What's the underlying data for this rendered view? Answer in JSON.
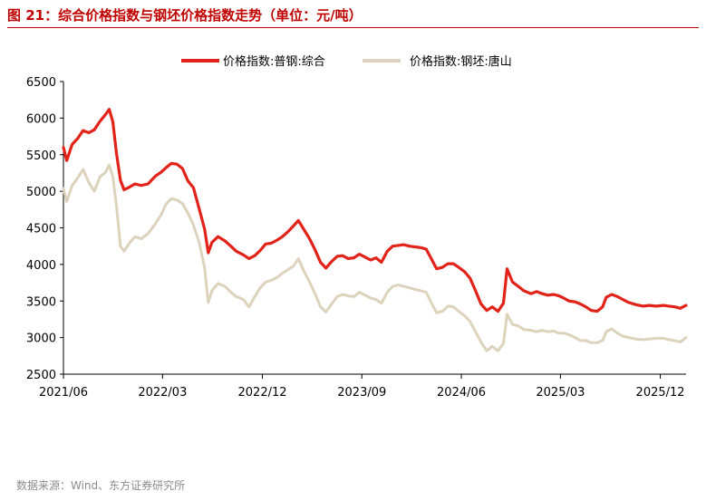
{
  "title": "图 21：综合价格指数与钢坯价格指数走势（单位：元/吨）",
  "source": "数据来源：Wind、东方证券研究所",
  "colors": {
    "accent": "#c00000",
    "series1": "#e2231a",
    "series2": "#ddd3bd"
  },
  "chart_data": {
    "type": "line",
    "title": "图 21：综合价格指数与钢坯价格指数走势（单位：元/吨）",
    "xlabel": "",
    "ylabel": "",
    "ylim": [
      2500,
      6500
    ],
    "yticks": [
      "6500",
      "6000",
      "5500",
      "5000",
      "4500",
      "4000",
      "3500",
      "3000",
      "2500"
    ],
    "xticks": [
      "2021/06",
      "2022/03",
      "2022/12",
      "2023/09",
      "2024/06",
      "2025/03",
      "2025/12"
    ],
    "xrange": [
      "2021-06-01",
      "2026-02-10"
    ],
    "grid": false,
    "legend": "top-center",
    "series": [
      {
        "name": "价格指数:普钢:综合",
        "color": "#e2231a",
        "points": [
          [
            "2021-06-01",
            5600
          ],
          [
            "2021-06-10",
            5420
          ],
          [
            "2021-06-25",
            5640
          ],
          [
            "2021-07-10",
            5720
          ],
          [
            "2021-07-25",
            5830
          ],
          [
            "2021-08-10",
            5800
          ],
          [
            "2021-08-25",
            5840
          ],
          [
            "2021-09-10",
            5960
          ],
          [
            "2021-09-25",
            6050
          ],
          [
            "2021-10-05",
            6120
          ],
          [
            "2021-10-15",
            5950
          ],
          [
            "2021-10-25",
            5520
          ],
          [
            "2021-11-05",
            5150
          ],
          [
            "2021-11-15",
            5020
          ],
          [
            "2021-12-01",
            5060
          ],
          [
            "2021-12-15",
            5100
          ],
          [
            "2022-01-01",
            5080
          ],
          [
            "2022-01-20",
            5100
          ],
          [
            "2022-02-10",
            5210
          ],
          [
            "2022-02-25",
            5260
          ],
          [
            "2022-03-10",
            5320
          ],
          [
            "2022-03-25",
            5380
          ],
          [
            "2022-04-10",
            5370
          ],
          [
            "2022-04-25",
            5310
          ],
          [
            "2022-05-10",
            5140
          ],
          [
            "2022-05-25",
            5050
          ],
          [
            "2022-06-10",
            4760
          ],
          [
            "2022-06-25",
            4480
          ],
          [
            "2022-07-05",
            4160
          ],
          [
            "2022-07-15",
            4300
          ],
          [
            "2022-08-01",
            4380
          ],
          [
            "2022-08-20",
            4320
          ],
          [
            "2022-09-05",
            4250
          ],
          [
            "2022-09-20",
            4180
          ],
          [
            "2022-10-10",
            4130
          ],
          [
            "2022-10-25",
            4080
          ],
          [
            "2022-11-10",
            4120
          ],
          [
            "2022-11-25",
            4190
          ],
          [
            "2022-12-10",
            4280
          ],
          [
            "2022-12-25",
            4290
          ],
          [
            "2023-01-10",
            4330
          ],
          [
            "2023-01-25",
            4380
          ],
          [
            "2023-02-10",
            4450
          ],
          [
            "2023-02-25",
            4530
          ],
          [
            "2023-03-10",
            4600
          ],
          [
            "2023-03-25",
            4480
          ],
          [
            "2023-04-10",
            4350
          ],
          [
            "2023-04-25",
            4200
          ],
          [
            "2023-05-10",
            4030
          ],
          [
            "2023-05-25",
            3950
          ],
          [
            "2023-06-10",
            4040
          ],
          [
            "2023-06-25",
            4110
          ],
          [
            "2023-07-10",
            4120
          ],
          [
            "2023-07-25",
            4080
          ],
          [
            "2023-08-10",
            4090
          ],
          [
            "2023-08-25",
            4140
          ],
          [
            "2023-09-10",
            4100
          ],
          [
            "2023-09-25",
            4060
          ],
          [
            "2023-10-10",
            4090
          ],
          [
            "2023-10-25",
            4030
          ],
          [
            "2023-11-10",
            4180
          ],
          [
            "2023-11-25",
            4250
          ],
          [
            "2023-12-10",
            4260
          ],
          [
            "2023-12-25",
            4270
          ],
          [
            "2024-01-10",
            4250
          ],
          [
            "2024-01-25",
            4240
          ],
          [
            "2024-02-10",
            4230
          ],
          [
            "2024-02-25",
            4210
          ],
          [
            "2024-03-10",
            4080
          ],
          [
            "2024-03-25",
            3940
          ],
          [
            "2024-04-10",
            3960
          ],
          [
            "2024-04-25",
            4010
          ],
          [
            "2024-05-10",
            4010
          ],
          [
            "2024-05-25",
            3960
          ],
          [
            "2024-06-10",
            3900
          ],
          [
            "2024-06-25",
            3810
          ],
          [
            "2024-07-10",
            3640
          ],
          [
            "2024-07-25",
            3460
          ],
          [
            "2024-08-10",
            3370
          ],
          [
            "2024-08-25",
            3420
          ],
          [
            "2024-09-10",
            3360
          ],
          [
            "2024-09-25",
            3470
          ],
          [
            "2024-10-05",
            3940
          ],
          [
            "2024-10-20",
            3760
          ],
          [
            "2024-11-05",
            3700
          ],
          [
            "2024-11-20",
            3640
          ],
          [
            "2024-12-10",
            3600
          ],
          [
            "2024-12-25",
            3630
          ],
          [
            "2025-01-10",
            3600
          ],
          [
            "2025-01-25",
            3580
          ],
          [
            "2025-02-10",
            3590
          ],
          [
            "2025-02-25",
            3570
          ],
          [
            "2025-03-10",
            3540
          ],
          [
            "2025-03-25",
            3500
          ],
          [
            "2025-04-10",
            3490
          ],
          [
            "2025-04-25",
            3460
          ],
          [
            "2025-05-10",
            3420
          ],
          [
            "2025-05-25",
            3370
          ],
          [
            "2025-06-10",
            3360
          ],
          [
            "2025-06-25",
            3420
          ],
          [
            "2025-07-05",
            3550
          ],
          [
            "2025-07-20",
            3590
          ],
          [
            "2025-08-05",
            3560
          ],
          [
            "2025-08-20",
            3520
          ],
          [
            "2025-09-05",
            3480
          ],
          [
            "2025-09-25",
            3450
          ],
          [
            "2025-10-15",
            3430
          ],
          [
            "2025-11-01",
            3440
          ],
          [
            "2025-11-20",
            3430
          ],
          [
            "2025-12-10",
            3440
          ],
          [
            "2025-12-25",
            3430
          ],
          [
            "2026-01-10",
            3420
          ],
          [
            "2026-01-25",
            3400
          ],
          [
            "2026-02-10",
            3440
          ]
        ]
      },
      {
        "name": "价格指数:钢坯:唐山",
        "color": "#ddd3bd",
        "points": [
          [
            "2021-06-01",
            5040
          ],
          [
            "2021-06-10",
            4860
          ],
          [
            "2021-06-25",
            5080
          ],
          [
            "2021-07-10",
            5180
          ],
          [
            "2021-07-25",
            5300
          ],
          [
            "2021-08-10",
            5120
          ],
          [
            "2021-08-25",
            5000
          ],
          [
            "2021-09-10",
            5200
          ],
          [
            "2021-09-25",
            5260
          ],
          [
            "2021-10-05",
            5360
          ],
          [
            "2021-10-15",
            5200
          ],
          [
            "2021-10-25",
            4800
          ],
          [
            "2021-11-05",
            4250
          ],
          [
            "2021-11-15",
            4180
          ],
          [
            "2021-12-01",
            4300
          ],
          [
            "2021-12-15",
            4380
          ],
          [
            "2022-01-01",
            4350
          ],
          [
            "2022-01-20",
            4420
          ],
          [
            "2022-02-10",
            4560
          ],
          [
            "2022-02-25",
            4680
          ],
          [
            "2022-03-10",
            4820
          ],
          [
            "2022-03-25",
            4900
          ],
          [
            "2022-04-10",
            4880
          ],
          [
            "2022-04-25",
            4830
          ],
          [
            "2022-05-10",
            4700
          ],
          [
            "2022-05-25",
            4540
          ],
          [
            "2022-06-10",
            4300
          ],
          [
            "2022-06-25",
            3950
          ],
          [
            "2022-07-05",
            3480
          ],
          [
            "2022-07-15",
            3640
          ],
          [
            "2022-08-01",
            3740
          ],
          [
            "2022-08-20",
            3700
          ],
          [
            "2022-09-05",
            3620
          ],
          [
            "2022-09-20",
            3560
          ],
          [
            "2022-10-10",
            3520
          ],
          [
            "2022-10-25",
            3420
          ],
          [
            "2022-11-10",
            3560
          ],
          [
            "2022-11-25",
            3680
          ],
          [
            "2022-12-10",
            3760
          ],
          [
            "2022-12-25",
            3780
          ],
          [
            "2023-01-10",
            3820
          ],
          [
            "2023-01-25",
            3880
          ],
          [
            "2023-02-10",
            3930
          ],
          [
            "2023-02-25",
            3980
          ],
          [
            "2023-03-10",
            4080
          ],
          [
            "2023-03-25",
            3910
          ],
          [
            "2023-04-10",
            3760
          ],
          [
            "2023-04-25",
            3600
          ],
          [
            "2023-05-10",
            3420
          ],
          [
            "2023-05-25",
            3350
          ],
          [
            "2023-06-10",
            3460
          ],
          [
            "2023-06-25",
            3560
          ],
          [
            "2023-07-10",
            3590
          ],
          [
            "2023-07-25",
            3570
          ],
          [
            "2023-08-10",
            3560
          ],
          [
            "2023-08-25",
            3620
          ],
          [
            "2023-09-10",
            3580
          ],
          [
            "2023-09-25",
            3540
          ],
          [
            "2023-10-10",
            3520
          ],
          [
            "2023-10-25",
            3470
          ],
          [
            "2023-11-10",
            3620
          ],
          [
            "2023-11-25",
            3700
          ],
          [
            "2023-12-10",
            3720
          ],
          [
            "2023-12-25",
            3700
          ],
          [
            "2024-01-10",
            3680
          ],
          [
            "2024-01-25",
            3660
          ],
          [
            "2024-02-10",
            3640
          ],
          [
            "2024-02-25",
            3620
          ],
          [
            "2024-03-10",
            3480
          ],
          [
            "2024-03-25",
            3340
          ],
          [
            "2024-04-10",
            3360
          ],
          [
            "2024-04-25",
            3430
          ],
          [
            "2024-05-10",
            3420
          ],
          [
            "2024-05-25",
            3360
          ],
          [
            "2024-06-10",
            3300
          ],
          [
            "2024-06-25",
            3220
          ],
          [
            "2024-07-10",
            3080
          ],
          [
            "2024-07-25",
            2940
          ],
          [
            "2024-08-10",
            2820
          ],
          [
            "2024-08-25",
            2880
          ],
          [
            "2024-09-10",
            2820
          ],
          [
            "2024-09-25",
            2920
          ],
          [
            "2024-10-05",
            3320
          ],
          [
            "2024-10-20",
            3180
          ],
          [
            "2024-11-05",
            3160
          ],
          [
            "2024-11-20",
            3110
          ],
          [
            "2024-12-10",
            3100
          ],
          [
            "2024-12-25",
            3080
          ],
          [
            "2025-01-10",
            3100
          ],
          [
            "2025-01-25",
            3080
          ],
          [
            "2025-02-10",
            3090
          ],
          [
            "2025-02-25",
            3060
          ],
          [
            "2025-03-10",
            3060
          ],
          [
            "2025-03-25",
            3040
          ],
          [
            "2025-04-10",
            3000
          ],
          [
            "2025-04-25",
            2960
          ],
          [
            "2025-05-10",
            2960
          ],
          [
            "2025-05-25",
            2930
          ],
          [
            "2025-06-10",
            2930
          ],
          [
            "2025-06-25",
            2960
          ],
          [
            "2025-07-05",
            3080
          ],
          [
            "2025-07-20",
            3120
          ],
          [
            "2025-08-05",
            3060
          ],
          [
            "2025-08-20",
            3020
          ],
          [
            "2025-09-05",
            3000
          ],
          [
            "2025-09-25",
            2980
          ],
          [
            "2025-10-15",
            2970
          ],
          [
            "2025-11-01",
            2980
          ],
          [
            "2025-11-20",
            2990
          ],
          [
            "2025-12-10",
            2990
          ],
          [
            "2025-12-25",
            2970
          ],
          [
            "2026-01-10",
            2960
          ],
          [
            "2026-01-25",
            2940
          ],
          [
            "2026-02-10",
            3000
          ]
        ]
      }
    ]
  }
}
